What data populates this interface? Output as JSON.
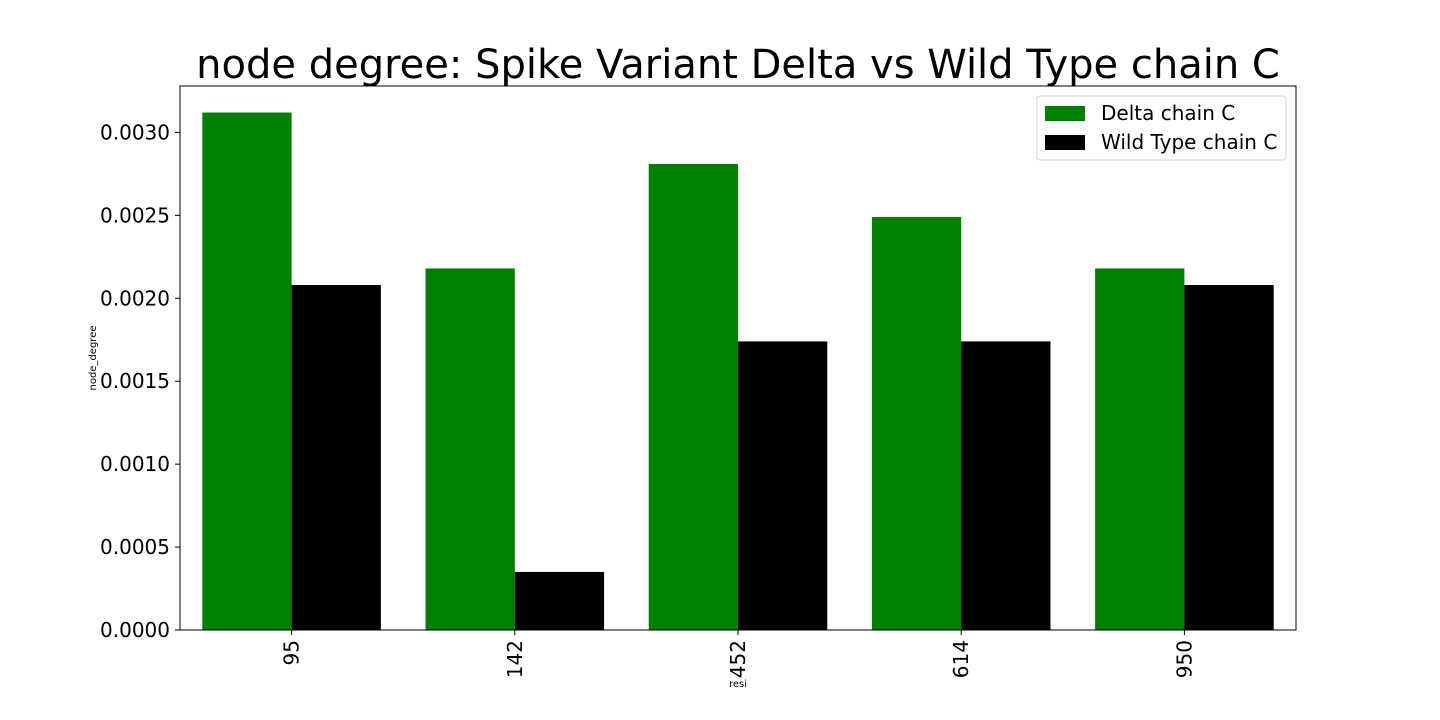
{
  "chart_data": {
    "type": "bar",
    "title": "node degree: Spike Variant Delta vs Wild Type chain C",
    "xlabel": "resi",
    "ylabel": "node_degree",
    "categories": [
      "95",
      "142",
      "452",
      "614",
      "950"
    ],
    "series": [
      {
        "name": "Delta chain C",
        "color": "#008000",
        "values": [
          0.00312,
          0.00218,
          0.00281,
          0.00249,
          0.00218
        ]
      },
      {
        "name": "Wild Type chain C",
        "color": "#000000",
        "values": [
          0.00208,
          0.00035,
          0.00174,
          0.00174,
          0.00208
        ]
      }
    ],
    "ylim": [
      0,
      0.00328
    ],
    "yticks": [
      "0.0000",
      "0.0005",
      "0.0010",
      "0.0015",
      "0.0020",
      "0.0025",
      "0.0030"
    ],
    "grid": false,
    "legend_position": "top-right",
    "x_tick_rotation": "vertical"
  }
}
